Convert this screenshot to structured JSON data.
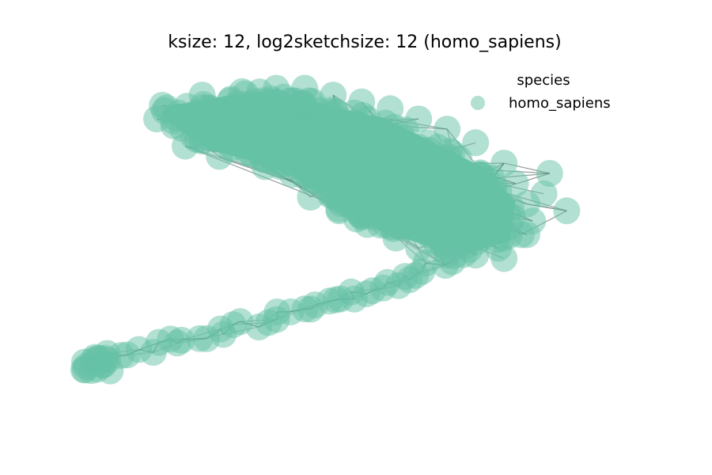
{
  "chart_data": {
    "type": "scatter",
    "title": "ksize: 12, log2sketchsize: 12 (homo_sapiens)",
    "legend": {
      "title": "species",
      "placement": "top-right",
      "entries": [
        {
          "label": "homo_sapiens",
          "color": "#66c2a5"
        }
      ]
    },
    "node_color": "#66c2a5",
    "edge_color": "#3a4f49",
    "xlim": [
      0,
      1
    ],
    "ylim": [
      0,
      1
    ],
    "axes_visible": false,
    "grid": false,
    "series": [
      {
        "name": "homo_sapiens",
        "note_shape": "network embedding: dense cluster upper-right, thin arm trailing to lower-left",
        "outline": [
          [
            0.17,
            0.85
          ],
          [
            0.16,
            0.88
          ],
          [
            0.17,
            0.9
          ],
          [
            0.22,
            0.91
          ],
          [
            0.28,
            0.93
          ],
          [
            0.33,
            0.94
          ],
          [
            0.37,
            0.93
          ],
          [
            0.41,
            0.92
          ],
          [
            0.45,
            0.9
          ],
          [
            0.5,
            0.88
          ],
          [
            0.55,
            0.86
          ],
          [
            0.6,
            0.82
          ],
          [
            0.66,
            0.77
          ],
          [
            0.72,
            0.72
          ],
          [
            0.78,
            0.62
          ],
          [
            0.77,
            0.5
          ],
          [
            0.7,
            0.47
          ],
          [
            0.62,
            0.49
          ],
          [
            0.55,
            0.53
          ],
          [
            0.48,
            0.58
          ],
          [
            0.44,
            0.64
          ],
          [
            0.38,
            0.7
          ],
          [
            0.31,
            0.74
          ],
          [
            0.24,
            0.77
          ]
        ],
        "arm": [
          [
            0.69,
            0.48
          ],
          [
            0.66,
            0.45
          ],
          [
            0.62,
            0.42
          ],
          [
            0.58,
            0.39
          ],
          [
            0.54,
            0.36
          ],
          [
            0.5,
            0.34
          ],
          [
            0.46,
            0.32
          ],
          [
            0.42,
            0.3
          ],
          [
            0.37,
            0.28
          ],
          [
            0.32,
            0.26
          ],
          [
            0.27,
            0.24
          ],
          [
            0.22,
            0.22
          ],
          [
            0.17,
            0.2
          ],
          [
            0.12,
            0.18
          ],
          [
            0.07,
            0.16
          ],
          [
            0.03,
            0.14
          ]
        ],
        "perimeter_nodes": [
          [
            0.16,
            0.9
          ],
          [
            0.15,
            0.86
          ],
          [
            0.18,
            0.84
          ],
          [
            0.23,
            0.93
          ],
          [
            0.3,
            0.94
          ],
          [
            0.36,
            0.95
          ],
          [
            0.41,
            0.95
          ],
          [
            0.46,
            0.93
          ],
          [
            0.51,
            0.91
          ],
          [
            0.56,
            0.89
          ],
          [
            0.61,
            0.86
          ],
          [
            0.66,
            0.83
          ],
          [
            0.71,
            0.79
          ],
          [
            0.76,
            0.73
          ],
          [
            0.78,
            0.67
          ],
          [
            0.8,
            0.61
          ],
          [
            0.81,
            0.56
          ],
          [
            0.79,
            0.52
          ],
          [
            0.75,
            0.48
          ],
          [
            0.71,
            0.46
          ],
          [
            0.66,
            0.46
          ],
          [
            0.61,
            0.48
          ],
          [
            0.57,
            0.51
          ],
          [
            0.52,
            0.55
          ],
          [
            0.47,
            0.59
          ],
          [
            0.42,
            0.63
          ],
          [
            0.34,
            0.72
          ],
          [
            0.26,
            0.75
          ],
          [
            0.2,
            0.78
          ],
          [
            0.87,
            0.59
          ],
          [
            0.83,
            0.64
          ],
          [
            0.84,
            0.7
          ],
          [
            0.8,
            0.52
          ],
          [
            0.76,
            0.45
          ],
          [
            0.68,
            0.49
          ],
          [
            0.58,
            0.54
          ]
        ]
      }
    ]
  }
}
